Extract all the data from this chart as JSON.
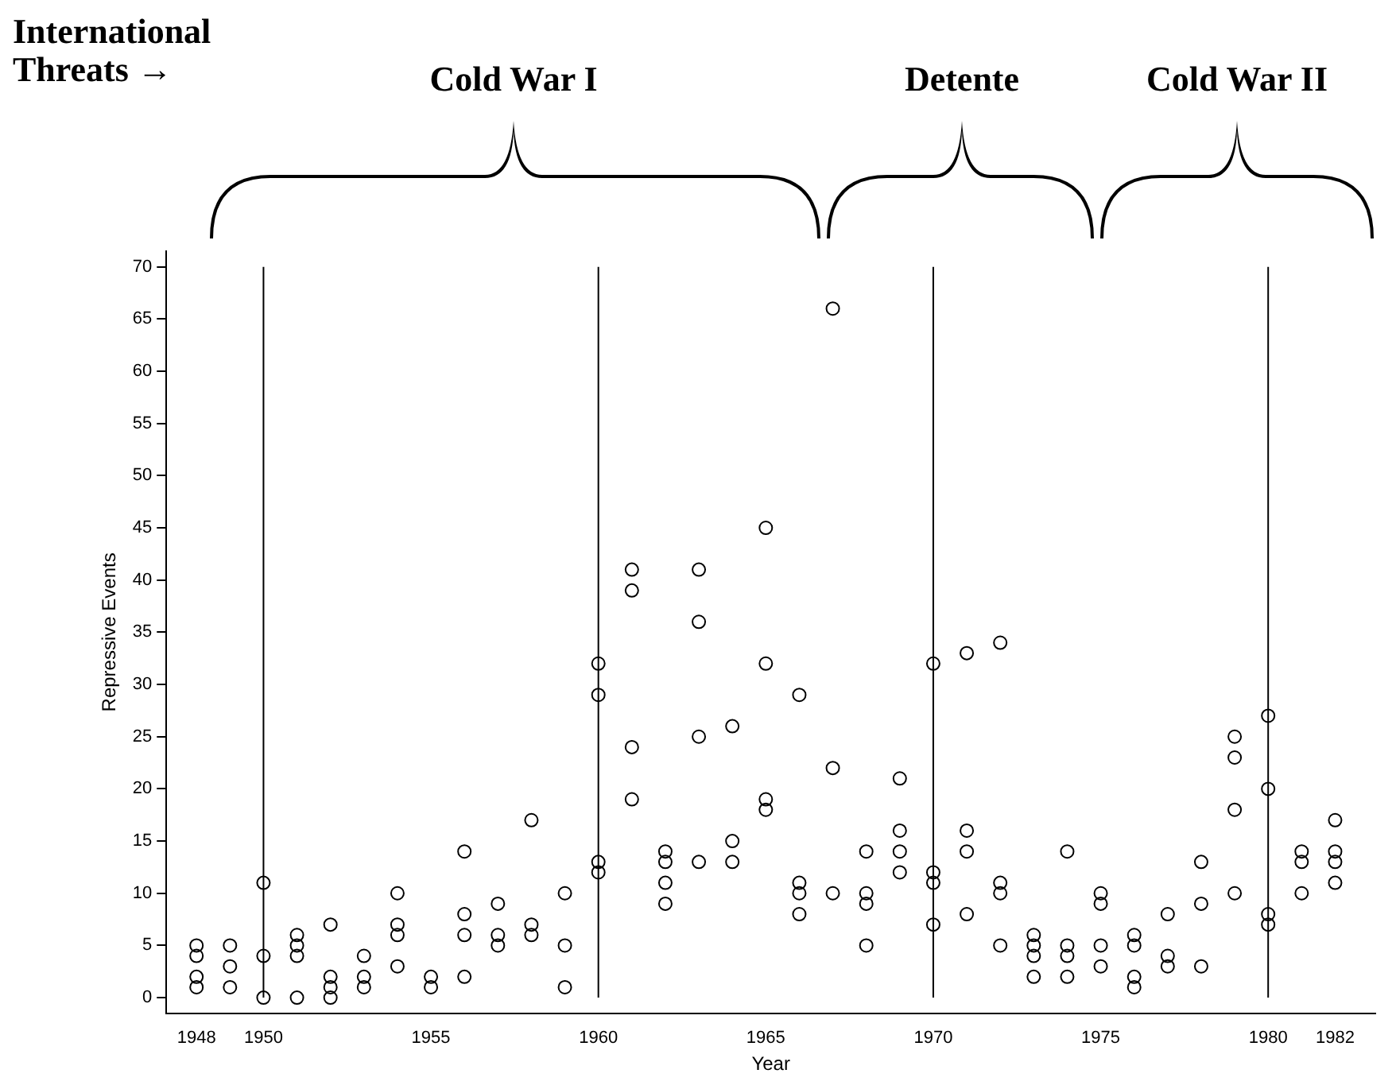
{
  "chart_data": {
    "type": "scatter",
    "xlabel": "Year",
    "ylabel": "Repressive Events",
    "annotations": [
      "International Threats →",
      "Cold War I",
      "Detente",
      "Cold War II"
    ],
    "x": [
      1948,
      1948,
      1948,
      1948,
      1949,
      1949,
      1949,
      1950,
      1950,
      1950,
      1951,
      1951,
      1951,
      1951,
      1952,
      1952,
      1952,
      1952,
      1953,
      1953,
      1953,
      1954,
      1954,
      1954,
      1954,
      1955,
      1955,
      1956,
      1956,
      1956,
      1956,
      1957,
      1957,
      1957,
      1958,
      1958,
      1958,
      1959,
      1959,
      1959,
      1960,
      1960,
      1960,
      1960,
      1961,
      1961,
      1961,
      1961,
      1962,
      1962,
      1962,
      1962,
      1963,
      1963,
      1963,
      1963,
      1964,
      1964,
      1964,
      1965,
      1965,
      1965,
      1965,
      1966,
      1966,
      1966,
      1966,
      1967,
      1967,
      1967,
      1968,
      1968,
      1968,
      1968,
      1969,
      1969,
      1969,
      1969,
      1970,
      1970,
      1970,
      1970,
      1971,
      1971,
      1971,
      1971,
      1972,
      1972,
      1972,
      1972,
      1973,
      1973,
      1973,
      1973,
      1974,
      1974,
      1974,
      1974,
      1975,
      1975,
      1975,
      1975,
      1976,
      1976,
      1976,
      1976,
      1977,
      1977,
      1977,
      1978,
      1978,
      1978,
      1979,
      1979,
      1979,
      1979,
      1980,
      1980,
      1980,
      1980,
      1981,
      1981,
      1981,
      1982,
      1982,
      1982,
      1982
    ],
    "series": [
      {
        "color": "#000000",
        "values": [
          5,
          4,
          2,
          1,
          5,
          3,
          1,
          11,
          4,
          0,
          6,
          5,
          4,
          0,
          7,
          2,
          1,
          0,
          4,
          2,
          1,
          10,
          7,
          6,
          3,
          2,
          1,
          14,
          8,
          6,
          2,
          9,
          6,
          5,
          17,
          7,
          6,
          10,
          5,
          1,
          32,
          29,
          13,
          12,
          41,
          39,
          24,
          19,
          14,
          13,
          11,
          9,
          41,
          36,
          25,
          13,
          26,
          15,
          13,
          45,
          32,
          19,
          18,
          29,
          11,
          10,
          8,
          66,
          22,
          10,
          14,
          10,
          9,
          5,
          21,
          16,
          14,
          12,
          32,
          12,
          11,
          7,
          33,
          16,
          14,
          8,
          34,
          11,
          10,
          5,
          6,
          5,
          4,
          2,
          14,
          5,
          4,
          2,
          10,
          9,
          5,
          3,
          6,
          5,
          2,
          1,
          8,
          4,
          3,
          13,
          9,
          3,
          25,
          23,
          18,
          10,
          27,
          20,
          8,
          7,
          14,
          13,
          10,
          17,
          14,
          13,
          11
        ]
      }
    ],
    "marker": "circle",
    "xlim": [
      1947.1,
      1983.2
    ],
    "xticks": [
      1948,
      1950,
      1955,
      1960,
      1965,
      1970,
      1975,
      1980,
      1982
    ],
    "ylim": [
      -1.5,
      71.5
    ],
    "yticks": [
      0,
      5,
      10,
      15,
      20,
      25,
      30,
      35,
      40,
      45,
      50,
      55,
      60,
      65,
      70
    ],
    "ref_lines": [
      {
        "axis": "x",
        "value": 1950,
        "color": "#000000"
      },
      {
        "axis": "x",
        "value": 1960,
        "color": "#000000"
      },
      {
        "axis": "x",
        "value": 1970,
        "color": "#000000"
      },
      {
        "axis": "x",
        "value": 1980,
        "color": "#000000"
      }
    ],
    "grid": false,
    "legend": false
  }
}
